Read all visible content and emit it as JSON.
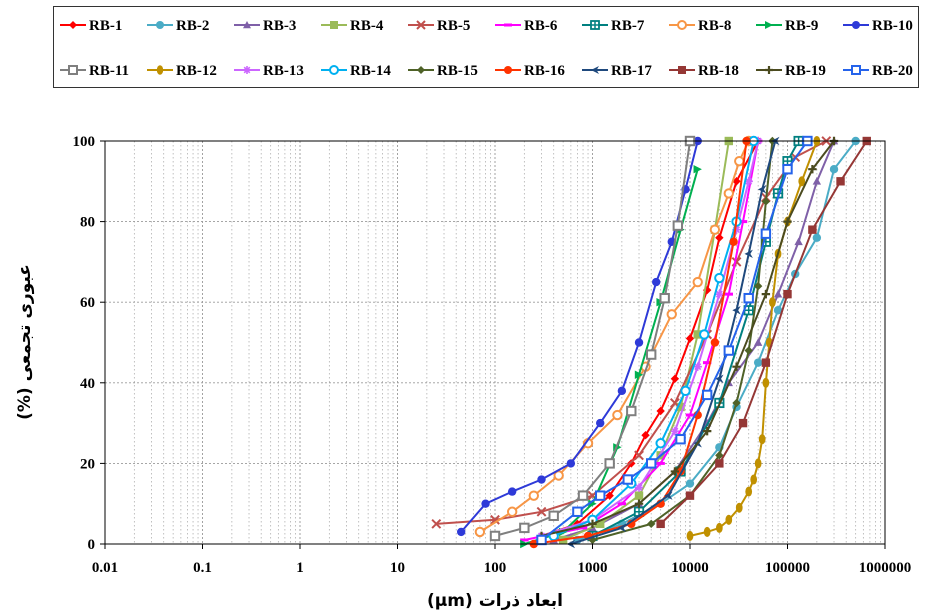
{
  "chart_data": {
    "type": "line",
    "xlabel": "ابعاد ذرات (μm)",
    "ylabel": "عبوری تجمعی (%)",
    "x_scale": "log",
    "xlim": [
      0.01,
      1000000
    ],
    "ylim": [
      0,
      100
    ],
    "x_ticks": [
      "0.01",
      "0.1",
      "1",
      "10",
      "100",
      "1000",
      "10000",
      "100000",
      "1000000"
    ],
    "y_ticks": [
      "0",
      "20",
      "40",
      "60",
      "80",
      "100"
    ],
    "grid": true,
    "legend_position": "top",
    "series": [
      {
        "name": "RB-1",
        "color": "#ff0000",
        "marker": "diamond",
        "x": [
          300,
          700,
          1500,
          2500,
          3500,
          5000,
          7000,
          10000,
          15000,
          20000,
          30000,
          50000
        ],
        "y": [
          2,
          5,
          12,
          20,
          27,
          33,
          41,
          51,
          63,
          76,
          90,
          100
        ]
      },
      {
        "name": "RB-2",
        "color": "#4bacc6",
        "marker": "circle",
        "x": [
          700,
          2000,
          5000,
          10000,
          20000,
          30000,
          50000,
          80000,
          120000,
          200000,
          300000,
          500000
        ],
        "y": [
          1,
          5,
          10,
          15,
          24,
          34,
          45,
          58,
          67,
          76,
          93,
          100
        ]
      },
      {
        "name": "RB-3",
        "color": "#7f60a8",
        "marker": "triangle",
        "x": [
          400,
          1000,
          3000,
          7000,
          15000,
          25000,
          50000,
          80000,
          130000,
          200000,
          300000
        ],
        "y": [
          1,
          4,
          10,
          18,
          30,
          40,
          50,
          62,
          75,
          90,
          100
        ]
      },
      {
        "name": "RB-4",
        "color": "#9bbb59",
        "marker": "square",
        "x": [
          500,
          1200,
          3000,
          5000,
          8000,
          12000,
          18000,
          25000
        ],
        "y": [
          1,
          5,
          12,
          22,
          34,
          52,
          78,
          100
        ]
      },
      {
        "name": "RB-5",
        "color": "#c0504d",
        "marker": "x",
        "x": [
          25,
          100,
          300,
          1000,
          3000,
          7000,
          15000,
          30000,
          60000,
          120000,
          250000
        ],
        "y": [
          5,
          6,
          8,
          12,
          22,
          35,
          52,
          70,
          86,
          96,
          100
        ]
      },
      {
        "name": "RB-6",
        "color": "#ff00ff",
        "marker": "dash",
        "x": [
          200,
          800,
          2000,
          5000,
          10000,
          15000,
          25000,
          35000,
          50000
        ],
        "y": [
          1,
          4,
          10,
          20,
          32,
          45,
          62,
          80,
          100
        ]
      },
      {
        "name": "RB-7",
        "color": "#008080",
        "marker": "squarex",
        "x": [
          1000,
          3000,
          8000,
          20000,
          40000,
          60000,
          80000,
          100000,
          130000
        ],
        "y": [
          2,
          8,
          18,
          35,
          58,
          75,
          87,
          95,
          100
        ]
      },
      {
        "name": "RB-8",
        "color": "#f79646",
        "marker": "ring",
        "x": [
          70,
          150,
          250,
          450,
          900,
          1800,
          3500,
          6500,
          12000,
          18000,
          25000,
          32000,
          40000
        ],
        "y": [
          3,
          8,
          12,
          17,
          25,
          32,
          44,
          57,
          65,
          78,
          87,
          95,
          100
        ]
      },
      {
        "name": "RB-9",
        "color": "#00b050",
        "marker": "tri-right",
        "x": [
          200,
          500,
          1000,
          1800,
          3000,
          5000,
          8000,
          12000
        ],
        "y": [
          0,
          3,
          10,
          24,
          42,
          60,
          78,
          93
        ]
      },
      {
        "name": "RB-10",
        "color": "#2e3ad8",
        "marker": "bullet",
        "x": [
          45,
          80,
          150,
          300,
          600,
          1200,
          2000,
          3000,
          4500,
          6500,
          9000,
          12000
        ],
        "y": [
          3,
          10,
          13,
          16,
          20,
          30,
          38,
          50,
          65,
          75,
          88,
          100
        ]
      },
      {
        "name": "RB-11",
        "color": "#7f7f7f",
        "marker": "square-open",
        "x": [
          100,
          200,
          400,
          800,
          1500,
          2500,
          4000,
          5500,
          7500,
          10000
        ],
        "y": [
          2,
          4,
          7,
          12,
          20,
          33,
          47,
          61,
          79,
          100
        ]
      },
      {
        "name": "RB-12",
        "color": "#c09000",
        "marker": "ellipse",
        "x": [
          10000,
          15000,
          20000,
          25000,
          32000,
          40000,
          45000,
          50000,
          55000,
          60000,
          65000,
          70000,
          80000,
          100000,
          140000,
          200000
        ],
        "y": [
          2,
          3,
          4,
          6,
          9,
          13,
          16,
          20,
          26,
          40,
          50,
          60,
          72,
          80,
          90,
          100
        ]
      },
      {
        "name": "RB-13",
        "color": "#cc66ff",
        "marker": "star",
        "x": [
          300,
          1000,
          3000,
          7000,
          12000,
          20000,
          30000,
          40000,
          50000
        ],
        "y": [
          2,
          6,
          14,
          28,
          44,
          62,
          78,
          90,
          100
        ]
      },
      {
        "name": "RB-14",
        "color": "#00b0f0",
        "marker": "ring",
        "x": [
          400,
          1000,
          2500,
          5000,
          9000,
          14000,
          20000,
          30000,
          45000
        ],
        "y": [
          2,
          6,
          15,
          25,
          38,
          52,
          66,
          80,
          100
        ]
      },
      {
        "name": "RB-15",
        "color": "#4f6228",
        "marker": "diamond-dark",
        "x": [
          1000,
          4000,
          10000,
          20000,
          30000,
          40000,
          50000,
          60000,
          70000
        ],
        "y": [
          1,
          5,
          12,
          22,
          35,
          48,
          64,
          85,
          100
        ]
      },
      {
        "name": "RB-16",
        "color": "#ff3300",
        "marker": "bullet",
        "x": [
          250,
          900,
          2500,
          5000,
          8000,
          12000,
          18000,
          28000,
          38000
        ],
        "y": [
          0,
          2,
          5,
          10,
          18,
          32,
          50,
          75,
          100
        ]
      },
      {
        "name": "RB-17",
        "color": "#1f497d",
        "marker": "arrow-left",
        "x": [
          600,
          2000,
          6000,
          12000,
          20000,
          30000,
          40000,
          55000,
          75000
        ],
        "y": [
          0,
          4,
          12,
          25,
          41,
          58,
          72,
          88,
          100
        ]
      },
      {
        "name": "RB-18",
        "color": "#953735",
        "marker": "square",
        "x": [
          5000,
          10000,
          20000,
          35000,
          60000,
          100000,
          180000,
          350000,
          650000
        ],
        "y": [
          5,
          12,
          20,
          30,
          45,
          62,
          78,
          90,
          100
        ]
      },
      {
        "name": "RB-19",
        "color": "#4b4b1f",
        "marker": "plus",
        "x": [
          300,
          1000,
          3000,
          7000,
          15000,
          30000,
          60000,
          100000,
          180000,
          300000
        ],
        "y": [
          2,
          5,
          10,
          18,
          28,
          44,
          62,
          80,
          93,
          100
        ]
      },
      {
        "name": "RB-20",
        "color": "#2563eb",
        "marker": "square-open",
        "x": [
          300,
          700,
          1200,
          2300,
          4000,
          8000,
          15000,
          25000,
          40000,
          60000,
          100000,
          160000
        ],
        "y": [
          1,
          8,
          12,
          16,
          20,
          26,
          37,
          48,
          61,
          77,
          93,
          100
        ]
      }
    ]
  }
}
